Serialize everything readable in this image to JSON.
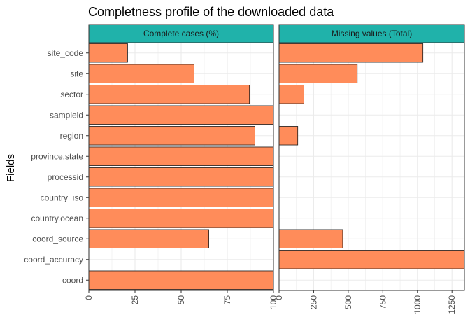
{
  "chart_data": {
    "type": "bar",
    "orientation": "horizontal",
    "title": "Completness profile of the downloaded data",
    "ylabel": "Fields",
    "categories": [
      "site_code",
      "site",
      "sector",
      "sampleid",
      "region",
      "province.state",
      "processid",
      "country_iso",
      "country.ocean",
      "coord_source",
      "coord_accuracy",
      "coord"
    ],
    "grid": true,
    "colors": {
      "bar_fill": "#FF8C5A",
      "bar_stroke": "#1a1a1a",
      "strip_fill": "#20B2AA",
      "panel_border": "#333333",
      "grid": "#EBEBEB"
    },
    "panels": [
      {
        "name": "Complete cases (%)",
        "xlim": [
          0,
          100
        ],
        "ticks": [
          0,
          25,
          50,
          75,
          100
        ],
        "tick_labels": [
          "0",
          "25",
          "50",
          "75",
          "100"
        ],
        "values": [
          21,
          57,
          87,
          100,
          90,
          100,
          100,
          100,
          100,
          65,
          0,
          100
        ]
      },
      {
        "name": "Missing values (Total)",
        "xlim": [
          0,
          1340
        ],
        "ticks": [
          0,
          250,
          500,
          750,
          1000,
          1250
        ],
        "tick_labels": [
          "0",
          "250",
          "500",
          "750",
          "1000",
          "1250"
        ],
        "values": [
          1040,
          565,
          180,
          0,
          135,
          0,
          0,
          0,
          0,
          460,
          1340,
          0
        ]
      }
    ]
  }
}
